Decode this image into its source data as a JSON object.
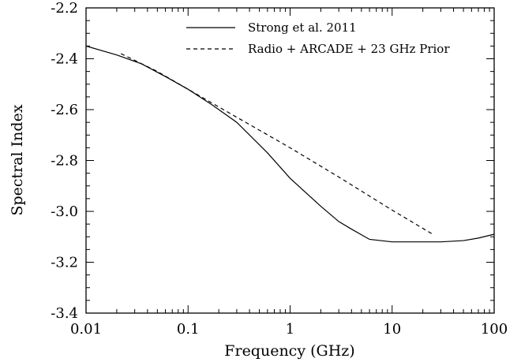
{
  "chart_data": {
    "type": "line",
    "xlabel": "Frequency (GHz)",
    "ylabel": "Spectral Index",
    "xscale": "log",
    "xlim": [
      0.01,
      100
    ],
    "ylim": [
      -3.4,
      -2.2
    ],
    "grid": false,
    "legend_position": "top-right",
    "x_ticks": [
      0.01,
      0.1,
      1,
      10,
      100
    ],
    "x_tick_labels": [
      "0.01",
      "0.1",
      "1",
      "10",
      "100"
    ],
    "y_ticks": [
      -3.4,
      -3.2,
      -3.0,
      -2.8,
      -2.6,
      -2.4,
      -2.2
    ],
    "y_tick_labels": [
      "-3.4",
      "-3.2",
      "-3.0",
      "-2.8",
      "-2.6",
      "-2.4",
      "-2.2"
    ],
    "series": [
      {
        "name": "Strong et al. 2011",
        "style": "solid",
        "color": "#000000",
        "points": [
          [
            0.01,
            -2.35
          ],
          [
            0.02,
            -2.385
          ],
          [
            0.035,
            -2.42
          ],
          [
            0.06,
            -2.47
          ],
          [
            0.1,
            -2.52
          ],
          [
            0.17,
            -2.58
          ],
          [
            0.3,
            -2.65
          ],
          [
            0.6,
            -2.77
          ],
          [
            1.0,
            -2.87
          ],
          [
            2.0,
            -2.98
          ],
          [
            3.0,
            -3.04
          ],
          [
            4.0,
            -3.07
          ],
          [
            6.0,
            -3.11
          ],
          [
            10.0,
            -3.12
          ],
          [
            20.0,
            -3.12
          ],
          [
            30.0,
            -3.12
          ],
          [
            50.0,
            -3.115
          ],
          [
            70.0,
            -3.105
          ],
          [
            100.0,
            -3.09
          ]
        ]
      },
      {
        "name": "Radio + ARCADE + 23 GHz Prior",
        "style": "dashed",
        "color": "#000000",
        "points": [
          [
            0.022,
            -2.38
          ],
          [
            0.05,
            -2.45
          ],
          [
            0.1,
            -2.52
          ],
          [
            0.3,
            -2.63
          ],
          [
            1.0,
            -2.75
          ],
          [
            3.0,
            -2.865
          ],
          [
            10.0,
            -2.995
          ],
          [
            25.0,
            -3.09
          ]
        ]
      }
    ]
  }
}
